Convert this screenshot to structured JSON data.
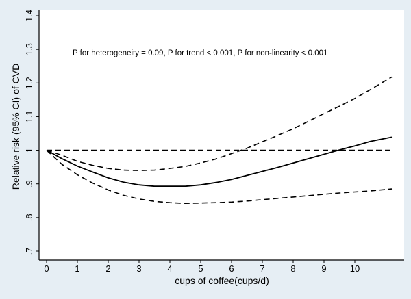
{
  "chart_data": {
    "type": "line",
    "title": "",
    "xlabel": "cups of coffee(cups/d)",
    "ylabel": "Relative risk (95% CI) of CVD",
    "annotation": "P for heterogeneity = 0.09, P for trend < 0.001, P for non-linearity < 0.001",
    "xlim": [
      0,
      11.2
    ],
    "ylim": [
      0.7,
      1.4
    ],
    "x_ticks": [
      0,
      1,
      2,
      3,
      4,
      5,
      6,
      7,
      8,
      9,
      10
    ],
    "x_tick_labels": [
      "0",
      "1",
      "2",
      "3",
      "4",
      "5",
      "6",
      "7",
      "8",
      "9",
      "10"
    ],
    "y_ticks": [
      0.7,
      0.8,
      0.9,
      1.0,
      1.1,
      1.2,
      1.3,
      1.4
    ],
    "y_tick_labels": [
      ".7",
      ".8",
      ".9",
      "1",
      "1.1",
      "1.2",
      "1.3",
      "1.4"
    ],
    "grid": false,
    "background_color": "#e6eef4",
    "plot_background_color": "#ffffff",
    "series": [
      {
        "style": "solid",
        "points": [
          [
            0,
            1.0
          ],
          [
            0.5,
            0.975
          ],
          [
            1,
            0.953
          ],
          [
            1.5,
            0.935
          ],
          [
            2,
            0.918
          ],
          [
            2.5,
            0.905
          ],
          [
            3,
            0.897
          ],
          [
            3.5,
            0.893
          ],
          [
            4,
            0.893
          ],
          [
            4.5,
            0.893
          ],
          [
            5,
            0.897
          ],
          [
            5.5,
            0.904
          ],
          [
            6,
            0.913
          ],
          [
            6.5,
            0.925
          ],
          [
            7,
            0.937
          ],
          [
            7.5,
            0.949
          ],
          [
            8,
            0.962
          ],
          [
            8.5,
            0.975
          ],
          [
            9,
            0.988
          ],
          [
            9.5,
            1.001
          ],
          [
            10,
            1.013
          ],
          [
            10.5,
            1.026
          ],
          [
            11.2,
            1.039
          ]
        ]
      },
      {
        "style": "dashed",
        "points": [
          [
            0,
            1.0
          ],
          [
            0.5,
            0.985
          ],
          [
            1,
            0.967
          ],
          [
            1.5,
            0.955
          ],
          [
            2,
            0.946
          ],
          [
            2.5,
            0.941
          ],
          [
            3,
            0.94
          ],
          [
            3.5,
            0.941
          ],
          [
            4,
            0.946
          ],
          [
            4.5,
            0.952
          ],
          [
            5,
            0.962
          ],
          [
            5.5,
            0.974
          ],
          [
            6,
            0.99
          ],
          [
            6.5,
            1.006
          ],
          [
            7,
            1.025
          ],
          [
            7.5,
            1.044
          ],
          [
            8,
            1.064
          ],
          [
            8.5,
            1.086
          ],
          [
            9,
            1.109
          ],
          [
            9.5,
            1.131
          ],
          [
            10,
            1.154
          ],
          [
            10.5,
            1.18
          ],
          [
            11.2,
            1.218
          ]
        ]
      },
      {
        "style": "dashed",
        "points": [
          [
            0,
            1.0
          ],
          [
            0.5,
            0.958
          ],
          [
            1,
            0.927
          ],
          [
            1.5,
            0.902
          ],
          [
            2,
            0.882
          ],
          [
            2.5,
            0.866
          ],
          [
            3,
            0.855
          ],
          [
            3.5,
            0.848
          ],
          [
            4,
            0.844
          ],
          [
            4.5,
            0.842
          ],
          [
            5,
            0.843
          ],
          [
            5.5,
            0.844
          ],
          [
            6,
            0.846
          ],
          [
            6.5,
            0.849
          ],
          [
            7,
            0.853
          ],
          [
            7.5,
            0.857
          ],
          [
            8,
            0.861
          ],
          [
            8.5,
            0.865
          ],
          [
            9,
            0.869
          ],
          [
            9.5,
            0.873
          ],
          [
            10,
            0.876
          ],
          [
            10.5,
            0.879
          ],
          [
            11.2,
            0.885
          ]
        ]
      },
      {
        "style": "dashed",
        "points": [
          [
            0,
            1.0
          ],
          [
            11.2,
            1.0
          ]
        ]
      }
    ]
  }
}
